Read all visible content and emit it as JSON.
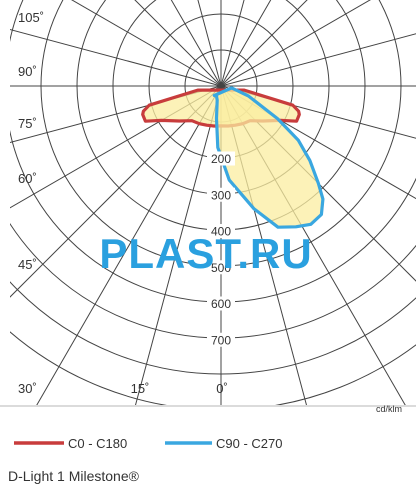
{
  "chart_data": {
    "type": "polar",
    "unit": "cd/klm",
    "radial_ticks": [
      200,
      300,
      400,
      500,
      600,
      700
    ],
    "angle_labels": [
      "105˚",
      "90˚",
      "75˚",
      "60˚",
      "45˚",
      "30˚",
      "15˚",
      "0˚"
    ],
    "radial_max": 800,
    "series": [
      {
        "name": "C0 - C180",
        "color": "#c83c3c",
        "fill": "#fbeea0",
        "points": [
          [
            -80,
            65
          ],
          [
            -75,
            205
          ],
          [
            -72,
            225
          ],
          [
            -70,
            230
          ],
          [
            -65,
            230
          ],
          [
            -60,
            190
          ],
          [
            -50,
            150
          ],
          [
            -40,
            125
          ],
          [
            -30,
            120
          ],
          [
            -20,
            115
          ],
          [
            -10,
            112
          ],
          [
            0,
            110
          ],
          [
            10,
            112
          ],
          [
            20,
            115
          ],
          [
            30,
            120
          ],
          [
            40,
            125
          ],
          [
            50,
            150
          ],
          [
            60,
            190
          ],
          [
            65,
            230
          ],
          [
            70,
            230
          ],
          [
            72,
            225
          ],
          [
            75,
            205
          ],
          [
            80,
            65
          ]
        ]
      },
      {
        "name": "C90 - C270",
        "color": "#3aa7e0",
        "fill": "#fbeea0",
        "points": [
          [
            -35,
            32
          ],
          [
            -25,
            30
          ],
          [
            -15,
            40
          ],
          [
            -8,
            90
          ],
          [
            -3,
            170
          ],
          [
            5,
            260
          ],
          [
            15,
            350
          ],
          [
            22,
            420
          ],
          [
            28,
            440
          ],
          [
            33,
            455
          ],
          [
            38,
            450
          ],
          [
            42,
            420
          ],
          [
            45,
            380
          ],
          [
            50,
            320
          ],
          [
            55,
            260
          ],
          [
            60,
            180
          ],
          [
            70,
            80
          ],
          [
            80,
            30
          ]
        ]
      }
    ]
  },
  "watermark": "PLAST.RU",
  "title": "D-Light 1 Milestone®"
}
